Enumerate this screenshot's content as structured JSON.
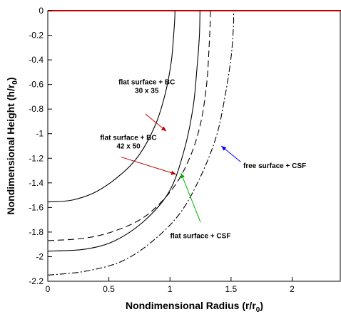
{
  "chart_data": {
    "type": "line",
    "xlabel": "Nondimensional Radius (r/r",
    "xlabel_sub": "0",
    "xlabel_end": ")",
    "ylabel": "Nondimensional Height (h/r",
    "ylabel_sub": "0",
    "ylabel_end": ")",
    "xlim": [
      0,
      2.4
    ],
    "ylim": [
      -2.2,
      0
    ],
    "x_ticks": [
      "0",
      "0.5",
      "1",
      "1.5",
      "2"
    ],
    "x_tick_values": [
      0,
      0.5,
      1,
      1.5,
      2
    ],
    "y_ticks": [
      "0",
      "-0.2",
      "-0.4",
      "-0.6",
      "-0.8",
      "-1",
      "-1.2",
      "-1.4",
      "-1.6",
      "-1.8",
      "-2",
      "-2.2"
    ],
    "y_tick_values": [
      0,
      -0.2,
      -0.4,
      -0.6,
      -0.8,
      -1,
      -1.2,
      -1.4,
      -1.6,
      -1.8,
      -2,
      -2.2
    ],
    "grid": false,
    "top_line": {
      "y": 0,
      "color": "#c00000"
    },
    "series": [
      {
        "style": "solid",
        "color": "#000000",
        "points": [
          [
            0,
            -1.555
          ],
          [
            0.2,
            -1.54
          ],
          [
            0.4,
            -1.47
          ],
          [
            0.6,
            -1.33
          ],
          [
            0.75,
            -1.17
          ],
          [
            0.88,
            -0.93
          ],
          [
            0.96,
            -0.68
          ],
          [
            1.01,
            -0.42
          ],
          [
            1.03,
            -0.2
          ],
          [
            1.04,
            -0.05
          ],
          [
            1.04,
            0
          ]
        ]
      },
      {
        "style": "solid",
        "color": "#000000",
        "points": [
          [
            0,
            -1.955
          ],
          [
            0.3,
            -1.94
          ],
          [
            0.55,
            -1.87
          ],
          [
            0.8,
            -1.7
          ],
          [
            1.0,
            -1.46
          ],
          [
            1.12,
            -1.12
          ],
          [
            1.19,
            -0.78
          ],
          [
            1.22,
            -0.48
          ],
          [
            1.24,
            -0.22
          ],
          [
            1.245,
            -0.05
          ],
          [
            1.245,
            0
          ]
        ]
      },
      {
        "style": "dashed",
        "color": "#000000",
        "points": [
          [
            0,
            -1.87
          ],
          [
            0.3,
            -1.85
          ],
          [
            0.55,
            -1.79
          ],
          [
            0.8,
            -1.67
          ],
          [
            1.02,
            -1.45
          ],
          [
            1.16,
            -1.2
          ],
          [
            1.25,
            -0.92
          ],
          [
            1.3,
            -0.6
          ],
          [
            1.32,
            -0.3
          ],
          [
            1.33,
            -0.08
          ],
          [
            1.33,
            0
          ]
        ]
      },
      {
        "style": "dashdot",
        "color": "#000000",
        "points": [
          [
            0,
            -2.15
          ],
          [
            0.3,
            -2.12
          ],
          [
            0.6,
            -2.04
          ],
          [
            0.85,
            -1.88
          ],
          [
            1.08,
            -1.65
          ],
          [
            1.25,
            -1.35
          ],
          [
            1.38,
            -1.02
          ],
          [
            1.45,
            -0.7
          ],
          [
            1.5,
            -0.38
          ],
          [
            1.52,
            -0.12
          ],
          [
            1.52,
            0
          ]
        ]
      }
    ],
    "annotations": [
      {
        "lines": [
          "flat surface + BC",
          "30 x 35"
        ],
        "tx": 0.81,
        "ty": -0.6,
        "anchor": "middle",
        "arrow_from": [
          0.8,
          -0.84
        ],
        "arrow_to": [
          0.97,
          -0.98
        ],
        "arrow_color": "#c00000"
      },
      {
        "lines": [
          "flat surface + BC",
          "42 x 50"
        ],
        "tx": 0.66,
        "ty": -1.05,
        "anchor": "middle",
        "arrow_from": [
          0.6,
          -1.19
        ],
        "arrow_to": [
          1.05,
          -1.33
        ],
        "arrow_color": "#c00000"
      },
      {
        "lines": [
          "free surface + CSF"
        ],
        "tx": 1.6,
        "ty": -1.28,
        "anchor": "start",
        "arrow_from": [
          1.58,
          -1.23
        ],
        "arrow_to": [
          1.42,
          -1.1
        ],
        "arrow_color": "#0000ff"
      },
      {
        "lines": [
          "flat surface + CSF"
        ],
        "tx": 1.25,
        "ty": -1.85,
        "anchor": "middle",
        "arrow_from": [
          1.25,
          -1.72
        ],
        "arrow_to": [
          1.09,
          -1.32
        ],
        "arrow_color": "#00b000"
      }
    ]
  }
}
